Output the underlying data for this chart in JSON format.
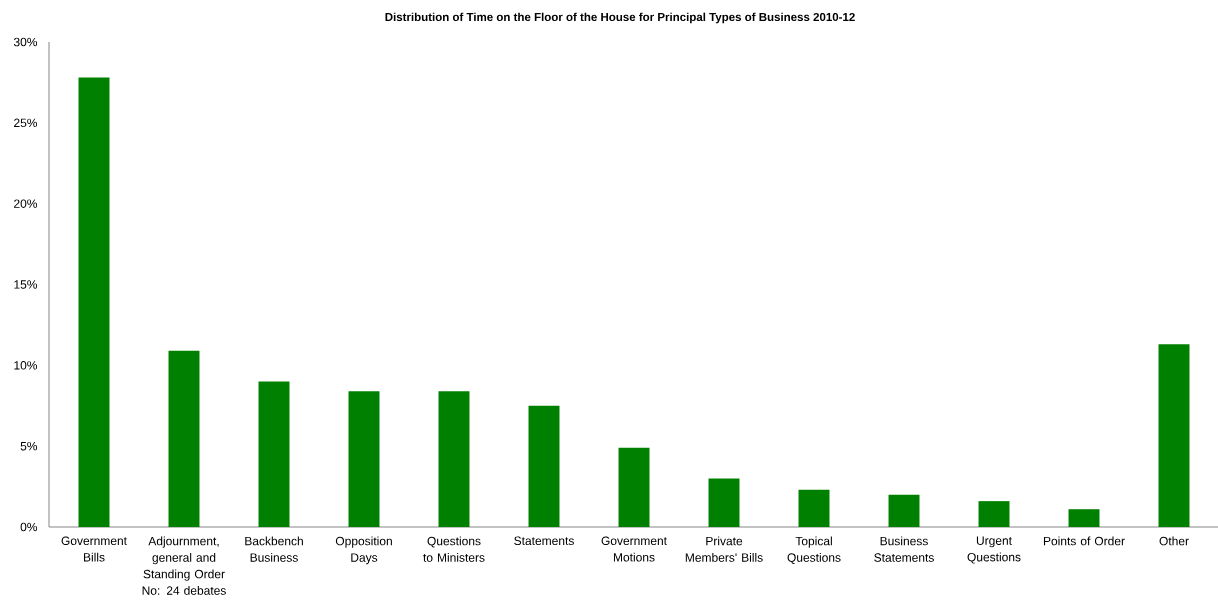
{
  "chart_data": {
    "type": "bar",
    "title": "Distribution of Time on the Floor of the House for Principal Types of Business 2010-12",
    "categories": [
      "Government Bills",
      "Adjournment, general and Standing Order No: 24 debates",
      "Backbench Business",
      "Opposition Days",
      "Questions to Ministers",
      "Statements",
      "Government Motions",
      "Private Members' Bills",
      "Topical Questions",
      "Business Statements",
      "Urgent Questions",
      "Points of Order",
      "Other"
    ],
    "values": [
      27.8,
      10.9,
      9.0,
      8.4,
      8.4,
      7.5,
      4.9,
      3.0,
      2.3,
      2.0,
      1.6,
      1.1,
      11.3
    ],
    "color": "#008000",
    "ylim": [
      0,
      30
    ],
    "yticks": [
      {
        "value": 0,
        "label": "0%"
      },
      {
        "value": 5,
        "label": "5%"
      },
      {
        "value": 10,
        "label": "10%"
      },
      {
        "value": 15,
        "label": "15%"
      },
      {
        "value": 20,
        "label": "20%"
      },
      {
        "value": 25,
        "label": "25%"
      },
      {
        "value": 30,
        "label": "30%"
      }
    ]
  }
}
